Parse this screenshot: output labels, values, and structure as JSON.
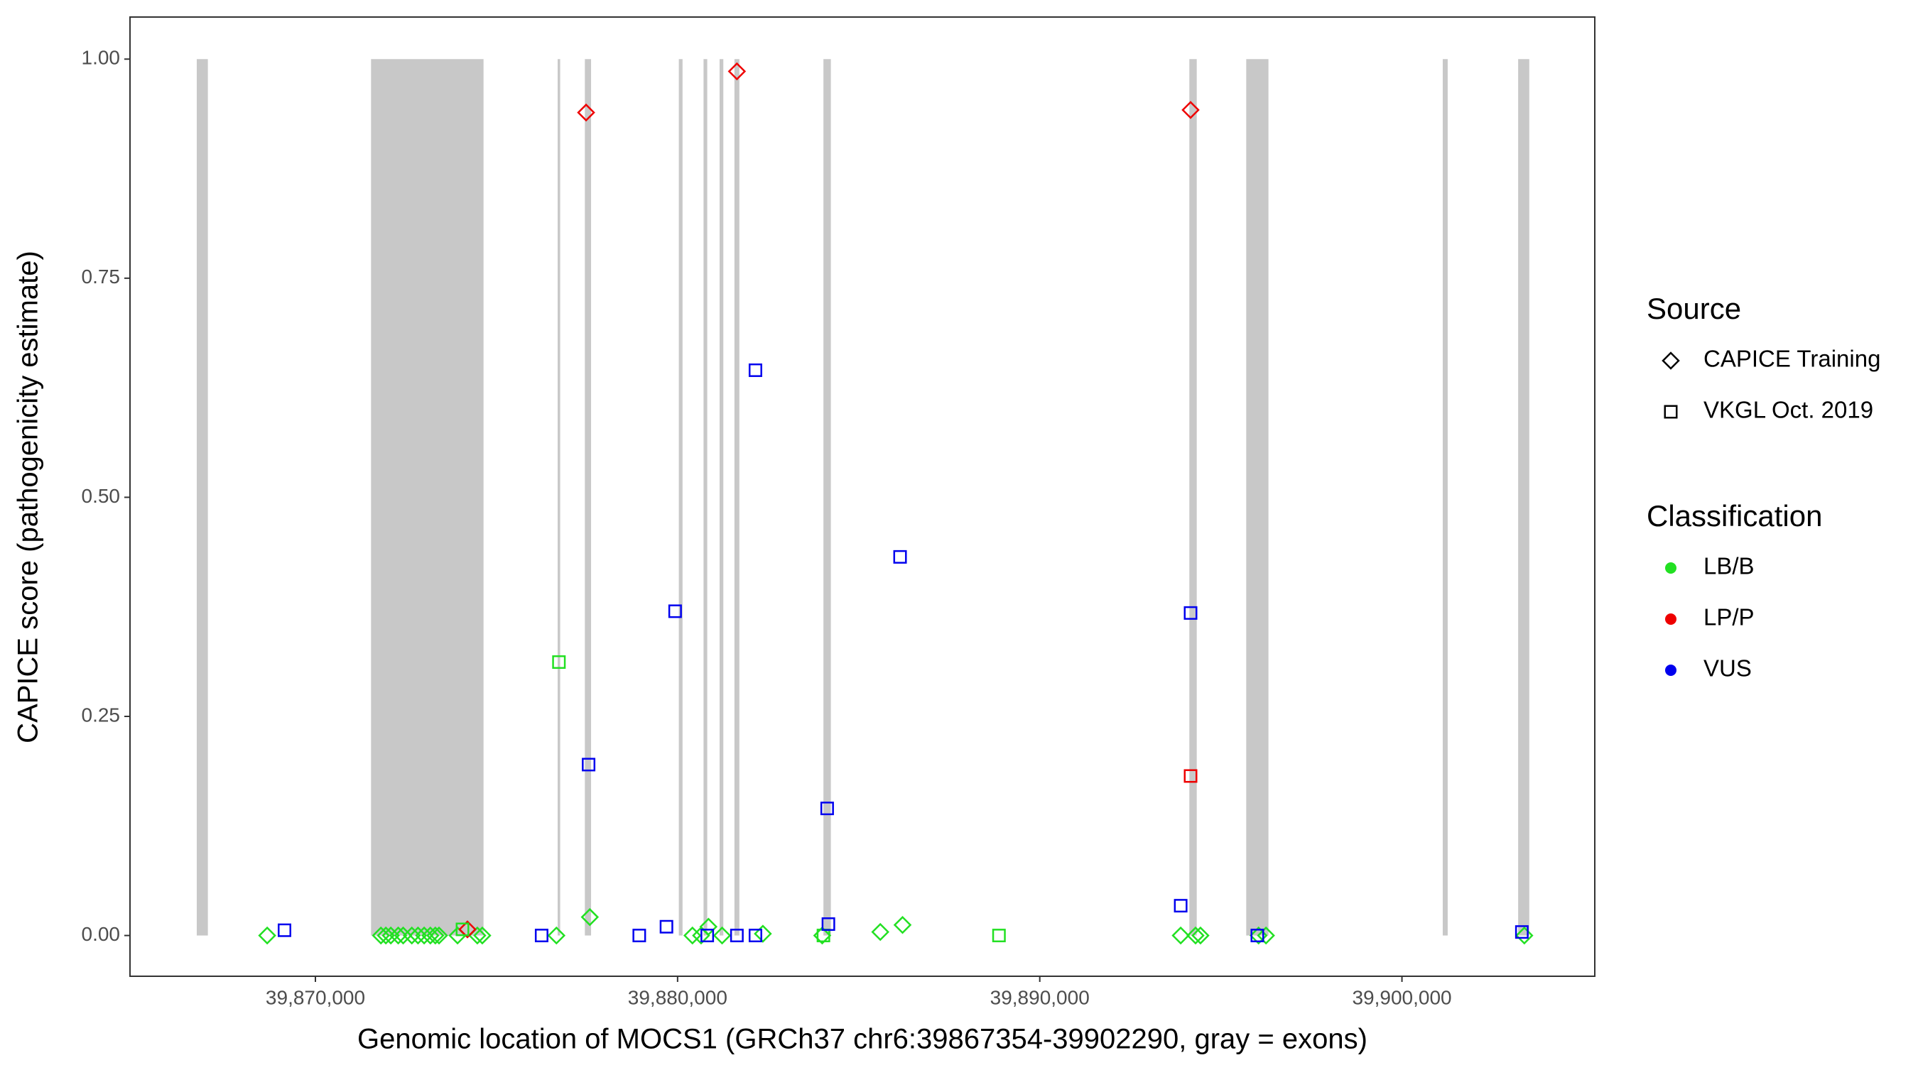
{
  "chart_data": {
    "type": "scatter",
    "xlabel": "Genomic location of MOCS1 (GRCh37 chr6:39867354-39902290, gray = exons)",
    "ylabel": "CAPICE score (pathogenicity estimate)",
    "xlim": [
      39864881,
      39905324
    ],
    "ylim": [
      -0.0465,
      1.048
    ],
    "xticks": [
      {
        "value": 39870000,
        "label": "39,870,000"
      },
      {
        "value": 39880000,
        "label": "39,880,000"
      },
      {
        "value": 39890000,
        "label": "39,890,000"
      },
      {
        "value": 39900000,
        "label": "39,900,000"
      }
    ],
    "yticks": [
      {
        "value": 0,
        "label": "0.00"
      },
      {
        "value": 0.25,
        "label": "0.25"
      },
      {
        "value": 0.5,
        "label": "0.50"
      },
      {
        "value": 0.75,
        "label": "0.75"
      },
      {
        "value": 1,
        "label": "1.00"
      }
    ],
    "exon_color": "#c8c8c8",
    "exons": [
      [
        39866724,
        39867031
      ],
      [
        39871536,
        39874642
      ],
      [
        39876689,
        39876758
      ],
      [
        39877440,
        39877611
      ],
      [
        39880034,
        39880137
      ],
      [
        39880717,
        39880819
      ],
      [
        39881160,
        39881263
      ],
      [
        39881570,
        39881706
      ],
      [
        39884027,
        39884232
      ],
      [
        39894130,
        39894334
      ],
      [
        39895700,
        39896314
      ],
      [
        39901126,
        39901263
      ],
      [
        39903208,
        39903515
      ]
    ],
    "source_title": "Source",
    "sources": [
      {
        "name": "CAPICE Training",
        "shape": "diamond"
      },
      {
        "name": "VKGL Oct. 2019",
        "shape": "square"
      }
    ],
    "classification_title": "Classification",
    "classifications": [
      {
        "name": "LB/B",
        "color": "#22e022"
      },
      {
        "name": "LP/P",
        "color": "#ee0000"
      },
      {
        "name": "VUS",
        "color": "#0000ee"
      }
    ],
    "series": [
      {
        "source": "CAPICE Training",
        "classification": "LB/B",
        "x": [
          39868669,
          39871809,
          39871945,
          39872082,
          39872287,
          39872423,
          39872662,
          39872833,
          39873003,
          39873174,
          39873311,
          39873413,
          39873925,
          39874471,
          39874608,
          39876655,
          39877577,
          39880410,
          39880649,
          39880853,
          39881229,
          39882355,
          39883993,
          39885597,
          39886211,
          39893891,
          39894301,
          39894437,
          39896041,
          39896246,
          39903379
        ],
        "y": [
          0,
          0,
          0,
          0,
          0,
          0,
          0,
          0,
          0,
          0,
          0,
          0,
          0,
          0,
          0,
          0,
          0.021,
          0,
          0,
          0.01,
          0,
          0.002,
          0,
          0.004,
          0.012,
          0,
          0,
          0,
          0,
          0,
          0
        ]
      },
      {
        "source": "CAPICE Training",
        "classification": "LP/P",
        "x": [
          39874198,
          39877474,
          39881638,
          39894164
        ],
        "y": [
          0.007,
          0.939,
          0.986,
          0.942
        ]
      },
      {
        "source": "VKGL Oct. 2019",
        "classification": "LB/B",
        "x": [
          39874061,
          39876724,
          39884027,
          39888874
        ],
        "y": [
          0.007,
          0.312,
          0,
          0
        ]
      },
      {
        "source": "VKGL Oct. 2019",
        "classification": "LP/P",
        "x": [
          39894164
        ],
        "y": [
          0.182
        ]
      },
      {
        "source": "VKGL Oct. 2019",
        "classification": "VUS",
        "x": [
          39869147,
          39876246,
          39877543,
          39878942,
          39879693,
          39879932,
          39880819,
          39881638,
          39882150,
          39882150,
          39884130,
          39884164,
          39886143,
          39893891,
          39894164,
          39896007,
          39903311
        ],
        "y": [
          0.006,
          0,
          0.195,
          0,
          0.01,
          0.37,
          0,
          0,
          0.645,
          0,
          0.145,
          0.013,
          0.432,
          0.034,
          0.368,
          0,
          0.004
        ]
      }
    ]
  }
}
